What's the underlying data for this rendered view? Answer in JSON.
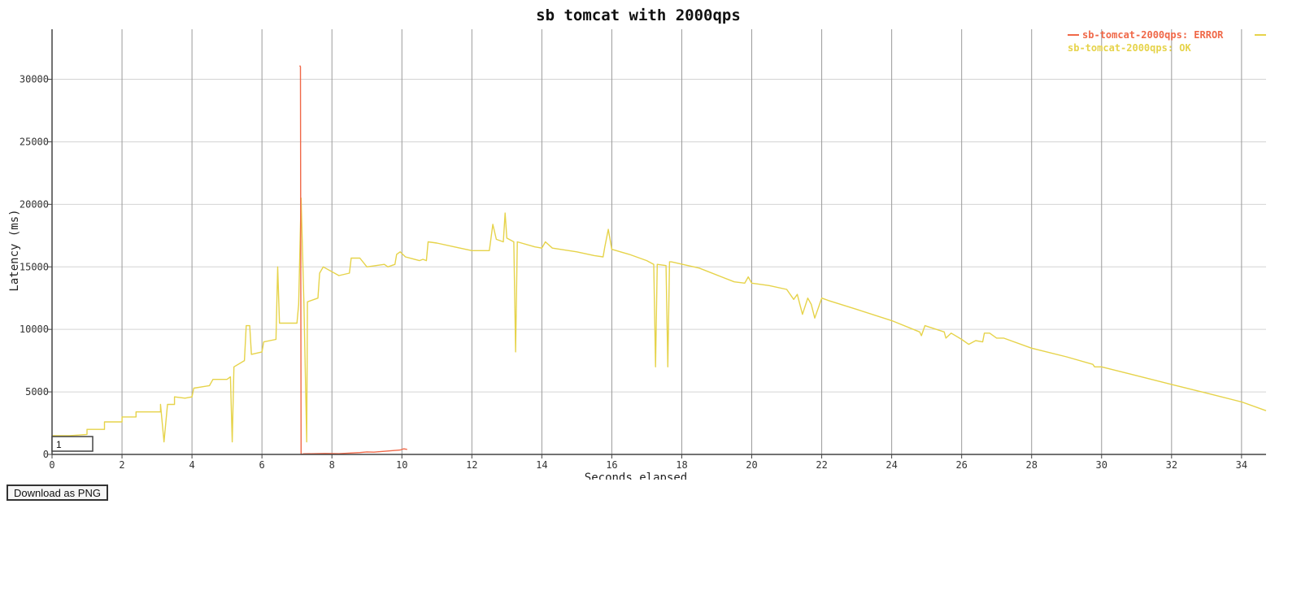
{
  "page": {
    "download_label": "Download as PNG",
    "input_value": "1"
  },
  "colors": {
    "error": "#f06848",
    "ok": "#e6d34a",
    "grid_major": "#9a9a9a",
    "grid_minor": "#d4d4d4",
    "axis": "#444444"
  },
  "chart_data": {
    "type": "line",
    "title": "sb tomcat with 2000qps",
    "xlabel": "Seconds elapsed",
    "ylabel": "Latency (ms)",
    "xlim": [
      0,
      34.7
    ],
    "ylim": [
      0,
      34000
    ],
    "xticks": [
      0,
      2,
      4,
      6,
      8,
      10,
      12,
      14,
      16,
      18,
      20,
      22,
      24,
      26,
      28,
      30,
      32,
      34
    ],
    "yticks": [
      0,
      5000,
      10000,
      15000,
      20000,
      25000,
      30000
    ],
    "grid": "vertical-major, horizontal-minor",
    "legend_position": "top-right",
    "series": [
      {
        "name": "sb-tomcat-2000qps: ERROR",
        "color": "error",
        "points": [
          [
            7.08,
            31100
          ],
          [
            7.1,
            31000
          ],
          [
            7.12,
            0
          ],
          [
            7.2,
            50
          ],
          [
            7.5,
            60
          ],
          [
            7.8,
            80
          ],
          [
            8.0,
            70
          ],
          [
            8.2,
            60
          ],
          [
            8.8,
            150
          ],
          [
            9.0,
            200
          ],
          [
            9.2,
            180
          ],
          [
            9.95,
            350
          ],
          [
            10.05,
            450
          ],
          [
            10.15,
            400
          ]
        ]
      },
      {
        "name": "sb-tomcat-2000qps: OK",
        "color": "ok",
        "points": [
          [
            0.0,
            1500
          ],
          [
            0.5,
            1500
          ],
          [
            1.0,
            1600
          ],
          [
            1.0,
            2000
          ],
          [
            1.5,
            2000
          ],
          [
            1.5,
            2600
          ],
          [
            2.0,
            2600
          ],
          [
            2.0,
            3000
          ],
          [
            2.4,
            3000
          ],
          [
            2.4,
            3400
          ],
          [
            3.1,
            3400
          ],
          [
            3.1,
            4000
          ],
          [
            3.2,
            1000
          ],
          [
            3.3,
            4000
          ],
          [
            3.5,
            4000
          ],
          [
            3.5,
            4600
          ],
          [
            3.8,
            4500
          ],
          [
            4.0,
            4600
          ],
          [
            4.05,
            5300
          ],
          [
            4.5,
            5500
          ],
          [
            4.6,
            6000
          ],
          [
            5.0,
            6000
          ],
          [
            5.1,
            6200
          ],
          [
            5.15,
            1000
          ],
          [
            5.2,
            7000
          ],
          [
            5.5,
            7500
          ],
          [
            5.55,
            10300
          ],
          [
            5.65,
            10300
          ],
          [
            5.7,
            8000
          ],
          [
            6.0,
            8200
          ],
          [
            6.05,
            9000
          ],
          [
            6.4,
            9200
          ],
          [
            6.45,
            15000
          ],
          [
            6.5,
            10500
          ],
          [
            7.0,
            10500
          ],
          [
            7.05,
            12000
          ],
          [
            7.12,
            20500
          ],
          [
            7.2,
            12000
          ],
          [
            7.28,
            1000
          ],
          [
            7.3,
            12200
          ],
          [
            7.6,
            12500
          ],
          [
            7.65,
            14500
          ],
          [
            7.75,
            15000
          ],
          [
            8.2,
            14300
          ],
          [
            8.5,
            14500
          ],
          [
            8.55,
            15700
          ],
          [
            8.8,
            15700
          ],
          [
            9.0,
            15000
          ],
          [
            9.5,
            15200
          ],
          [
            9.6,
            15000
          ],
          [
            9.8,
            15200
          ],
          [
            9.85,
            16000
          ],
          [
            9.95,
            16200
          ],
          [
            10.1,
            15800
          ],
          [
            10.5,
            15500
          ],
          [
            10.6,
            15600
          ],
          [
            10.7,
            15500
          ],
          [
            10.75,
            17000
          ],
          [
            11.0,
            16900
          ],
          [
            11.5,
            16600
          ],
          [
            12.0,
            16300
          ],
          [
            12.5,
            16300
          ],
          [
            12.6,
            18400
          ],
          [
            12.7,
            17200
          ],
          [
            12.9,
            17000
          ],
          [
            12.95,
            19300
          ],
          [
            13.0,
            17300
          ],
          [
            13.2,
            17000
          ],
          [
            13.25,
            8200
          ],
          [
            13.3,
            17000
          ],
          [
            13.8,
            16600
          ],
          [
            14.0,
            16500
          ],
          [
            14.1,
            17000
          ],
          [
            14.3,
            16500
          ],
          [
            15.0,
            16200
          ],
          [
            15.5,
            15900
          ],
          [
            15.75,
            15800
          ],
          [
            15.8,
            16600
          ],
          [
            15.9,
            18000
          ],
          [
            16.0,
            16400
          ],
          [
            16.5,
            16000
          ],
          [
            17.0,
            15500
          ],
          [
            17.2,
            15200
          ],
          [
            17.25,
            7000
          ],
          [
            17.3,
            15200
          ],
          [
            17.55,
            15100
          ],
          [
            17.6,
            7000
          ],
          [
            17.65,
            15400
          ],
          [
            17.7,
            15400
          ],
          [
            18.5,
            14900
          ],
          [
            19.5,
            13800
          ],
          [
            19.8,
            13700
          ],
          [
            19.9,
            14200
          ],
          [
            20.0,
            13700
          ],
          [
            20.5,
            13500
          ],
          [
            21.0,
            13200
          ],
          [
            21.2,
            12400
          ],
          [
            21.3,
            12800
          ],
          [
            21.45,
            11200
          ],
          [
            21.6,
            12500
          ],
          [
            21.7,
            12000
          ],
          [
            21.8,
            10900
          ],
          [
            22.0,
            12500
          ],
          [
            22.2,
            12300
          ],
          [
            23.0,
            11600
          ],
          [
            24.0,
            10700
          ],
          [
            24.8,
            9800
          ],
          [
            24.85,
            9500
          ],
          [
            24.95,
            10300
          ],
          [
            25.5,
            9800
          ],
          [
            25.55,
            9300
          ],
          [
            25.7,
            9700
          ],
          [
            26.0,
            9200
          ],
          [
            26.2,
            8800
          ],
          [
            26.4,
            9100
          ],
          [
            26.6,
            9000
          ],
          [
            26.65,
            9700
          ],
          [
            26.8,
            9700
          ],
          [
            27.0,
            9300
          ],
          [
            27.2,
            9300
          ],
          [
            28.0,
            8500
          ],
          [
            29.0,
            7800
          ],
          [
            29.75,
            7200
          ],
          [
            29.8,
            7000
          ],
          [
            30.0,
            7000
          ],
          [
            31.0,
            6300
          ],
          [
            32.0,
            5600
          ],
          [
            33.0,
            4900
          ],
          [
            34.0,
            4200
          ],
          [
            34.7,
            3500
          ]
        ]
      }
    ]
  }
}
